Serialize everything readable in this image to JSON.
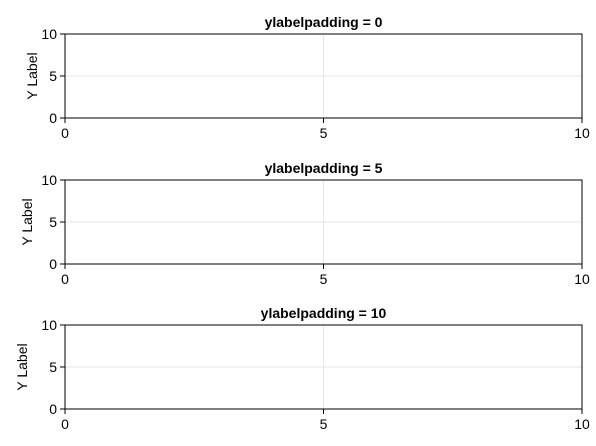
{
  "chart_data": [
    {
      "type": "line",
      "title": "ylabelpadding = 0",
      "ylabel": "Y Label",
      "xlabel": "",
      "xlim": [
        0,
        10
      ],
      "ylim": [
        0,
        10
      ],
      "xticks": [
        0,
        5,
        10
      ],
      "yticks": [
        0,
        5,
        10
      ],
      "ylabelpadding": 0,
      "grid": true,
      "series": []
    },
    {
      "type": "line",
      "title": "ylabelpadding = 5",
      "ylabel": "Y Label",
      "xlabel": "",
      "xlim": [
        0,
        10
      ],
      "ylim": [
        0,
        10
      ],
      "xticks": [
        0,
        5,
        10
      ],
      "yticks": [
        0,
        5,
        10
      ],
      "ylabelpadding": 5,
      "grid": true,
      "series": []
    },
    {
      "type": "line",
      "title": "ylabelpadding = 10",
      "ylabel": "Y Label",
      "xlabel": "",
      "xlim": [
        0,
        10
      ],
      "ylim": [
        0,
        10
      ],
      "xticks": [
        0,
        5,
        10
      ],
      "yticks": [
        0,
        5,
        10
      ],
      "ylabelpadding": 10,
      "grid": true,
      "series": []
    }
  ]
}
